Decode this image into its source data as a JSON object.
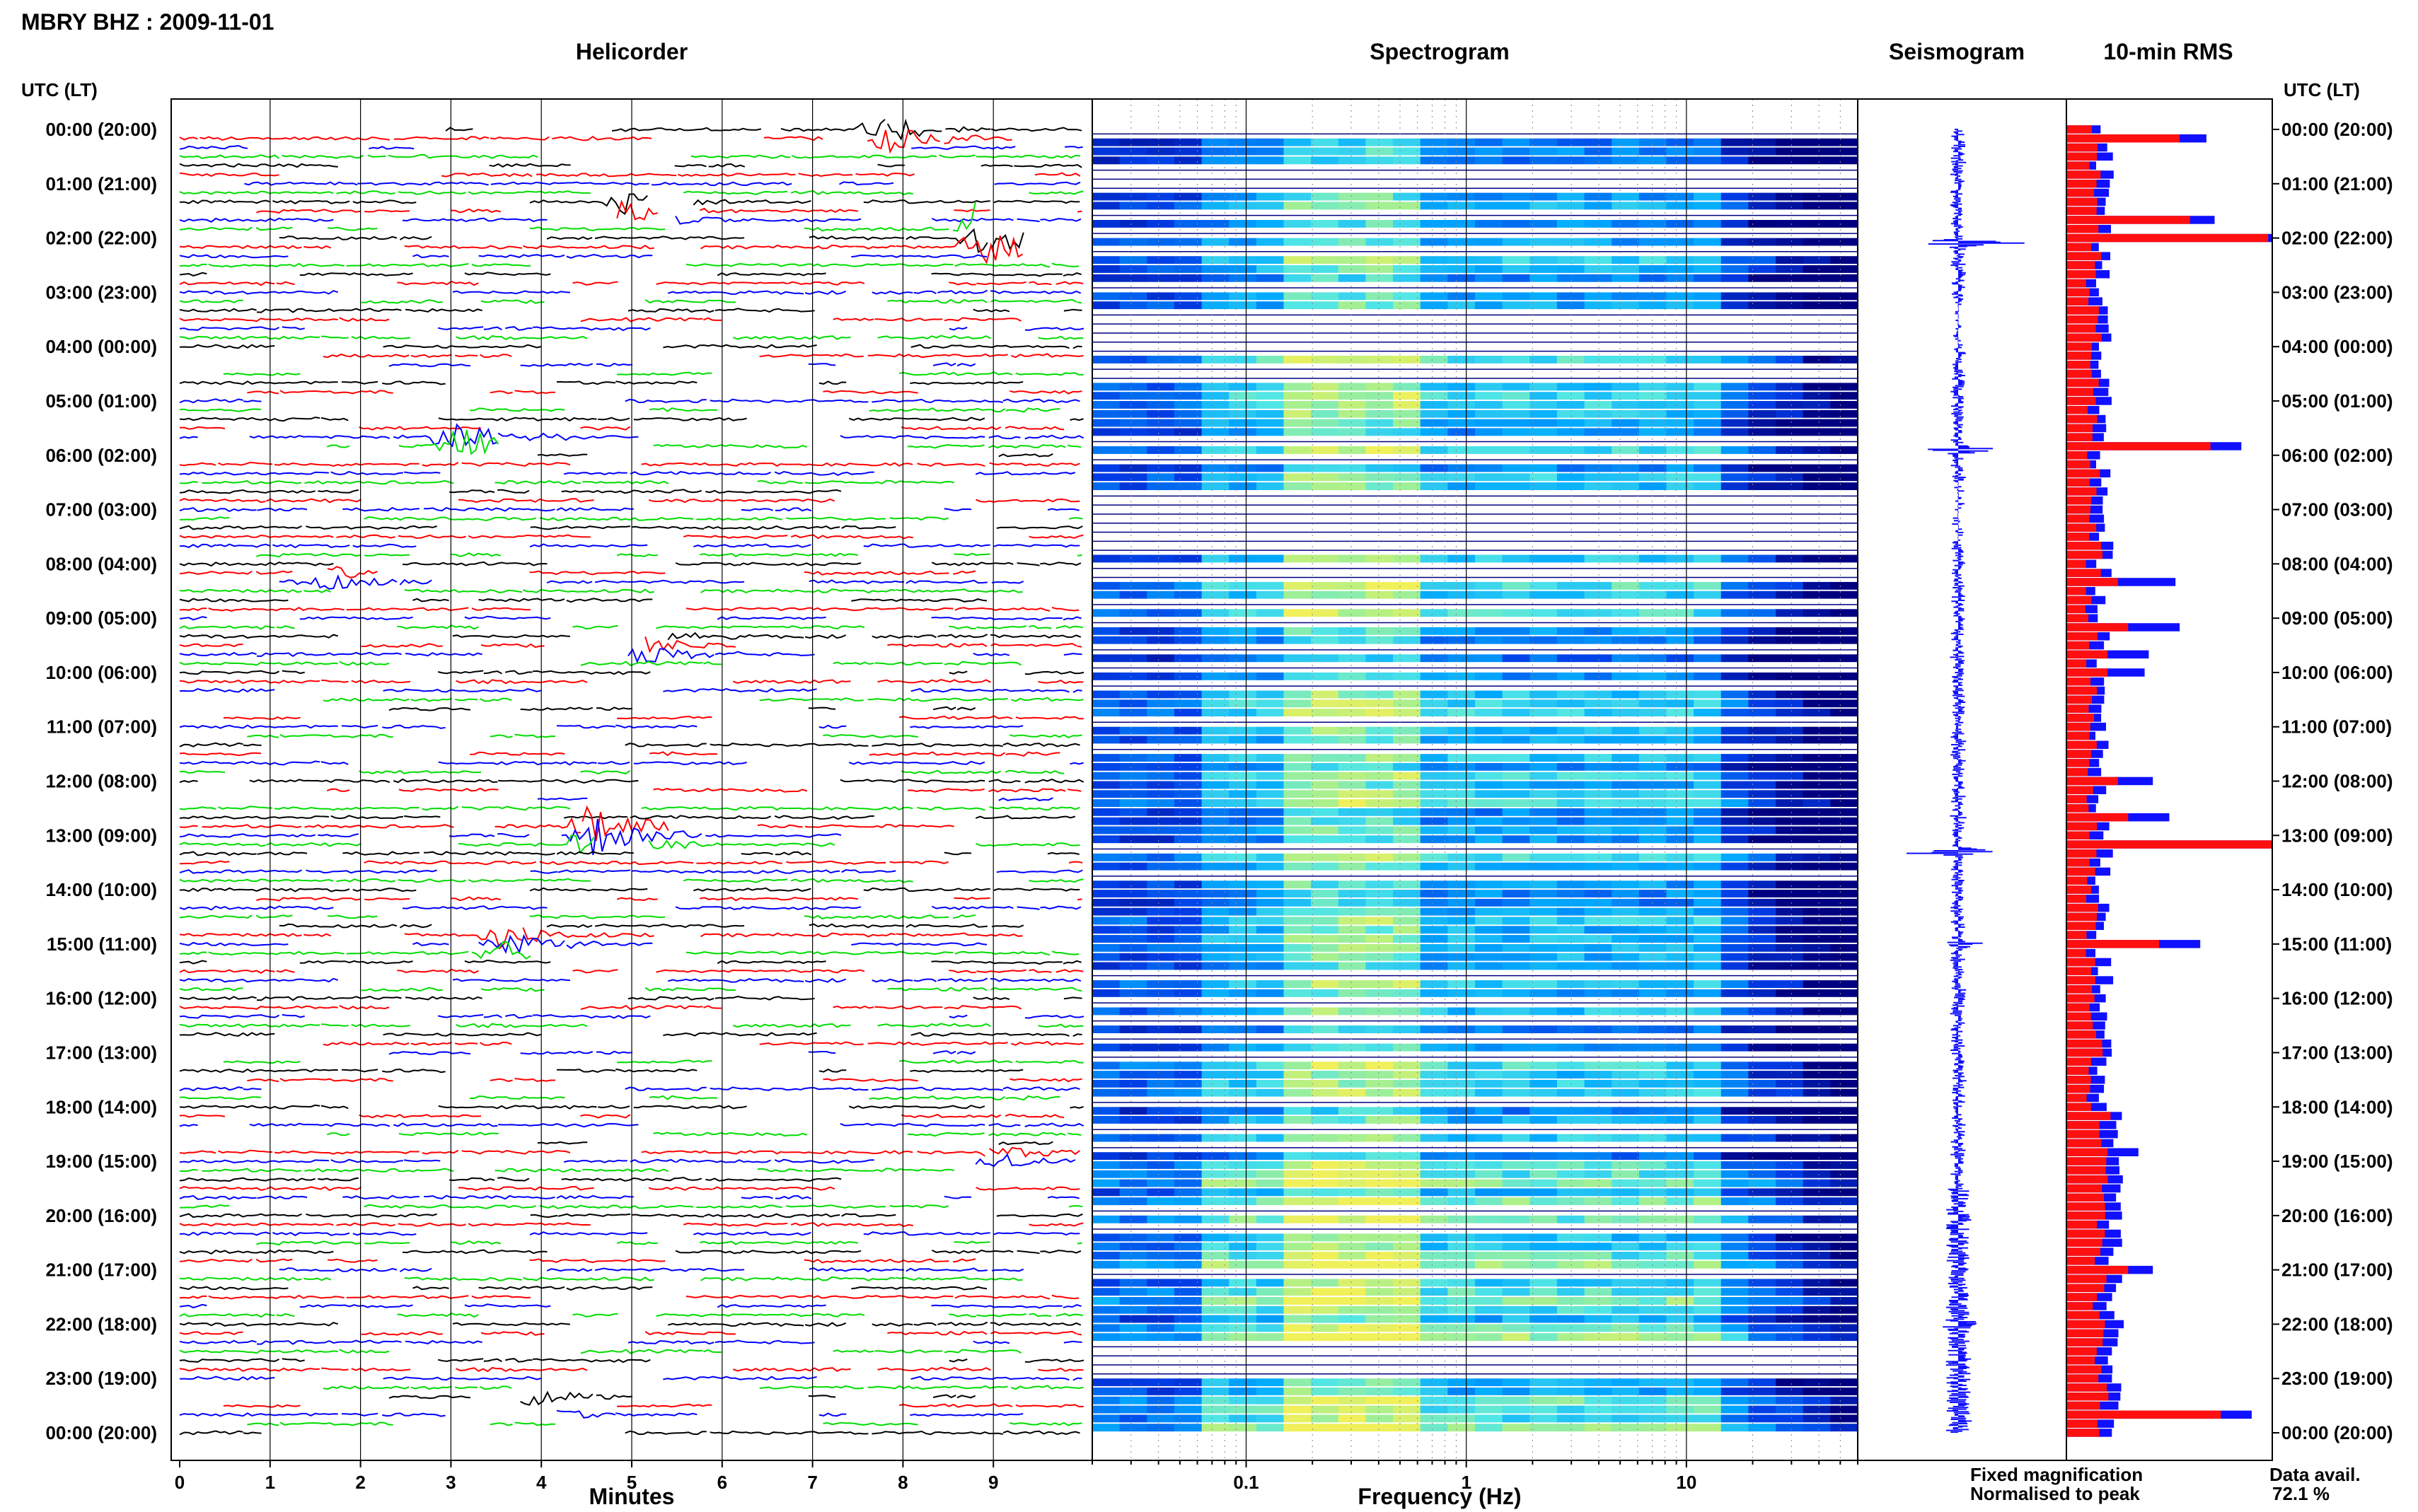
{
  "header": {
    "title": "MBRY BHZ : 2009-11-01"
  },
  "panels": {
    "helicorder": "Helicorder",
    "spectrogram": "Spectrogram",
    "seismogram": "Seismogram",
    "rms": "10-min RMS"
  },
  "axis": {
    "utc_label_left": "UTC (LT)",
    "utc_label_right": "UTC (LT)",
    "minutes_label": "Minutes",
    "frequency_label": "Frequency (Hz)"
  },
  "legend": {
    "fixed": "Fixed magnification",
    "normalised": "Normalised to peak",
    "fixed_color": "#1010ff",
    "normalised_color": "#ff1010"
  },
  "availability": {
    "label": "Data avail.",
    "value": "72.1 %"
  },
  "colors": {
    "trace_cycle": [
      "#000000",
      "#ff0000",
      "#0000ff",
      "#00dd00"
    ],
    "spectrogram_low": "#000080",
    "spectrogram_high": "#f0f060"
  },
  "chart_data": [
    {
      "type": "line",
      "title": "Helicorder",
      "xlabel": "Minutes",
      "x_ticks": [
        "0",
        "1",
        "2",
        "3",
        "4",
        "5",
        "6",
        "7",
        "8",
        "9"
      ],
      "xlim": [
        0,
        10
      ],
      "y_ticks": [
        "00:00 (20:00)",
        "01:00 (21:00)",
        "02:00 (22:00)",
        "03:00 (23:00)",
        "04:00 (00:00)",
        "05:00 (01:00)",
        "06:00 (02:00)",
        "07:00 (03:00)",
        "08:00 (04:00)",
        "09:00 (05:00)",
        "10:00 (06:00)",
        "11:00 (07:00)",
        "12:00 (08:00)",
        "13:00 (09:00)",
        "14:00 (10:00)",
        "15:00 (11:00)",
        "16:00 (12:00)",
        "17:00 (13:00)",
        "18:00 (14:00)",
        "19:00 (15:00)",
        "20:00 (16:00)",
        "21:00 (17:00)",
        "22:00 (18:00)",
        "23:00 (19:00)",
        "00:00 (20:00)"
      ],
      "lines_per_hour": 6,
      "events": [
        {
          "hour": 0.0,
          "minute": 7.7,
          "amp": 0.9
        },
        {
          "hour": 1.5,
          "minute": 4.8,
          "amp": 1.0
        },
        {
          "hour": 2.0,
          "minute": 8.8,
          "amp": 1.4
        },
        {
          "hour": 5.8,
          "minute": 3.0,
          "amp": 1.3
        },
        {
          "hour": 8.2,
          "minute": 1.5,
          "amp": 0.5
        },
        {
          "hour": 9.5,
          "minute": 5.0,
          "amp": 0.6
        },
        {
          "hour": 13.0,
          "minute": 4.5,
          "amp": 1.4
        },
        {
          "hour": 15.0,
          "minute": 3.5,
          "amp": 0.8
        },
        {
          "hour": 19.0,
          "minute": 9.0,
          "amp": 0.4
        },
        {
          "hour": 23.5,
          "minute": 3.5,
          "amp": 1.0
        }
      ]
    },
    {
      "type": "heatmap",
      "title": "Spectrogram",
      "xlabel": "Frequency (Hz)",
      "x_scale": "log",
      "x_ticks": [
        "0.1",
        "1",
        "10"
      ],
      "xlim": [
        0.02,
        60
      ]
    },
    {
      "type": "line",
      "title": "Seismogram",
      "peaks": [
        {
          "hour": 2.1,
          "amp": 0.95
        },
        {
          "hour": 5.9,
          "amp": 0.6
        },
        {
          "hour": 13.3,
          "amp": 1.0
        },
        {
          "hour": 15.0,
          "amp": 0.35
        },
        {
          "hour": 22.0,
          "amp": 0.25
        }
      ]
    },
    {
      "type": "bar",
      "title": "10-min RMS",
      "series": [
        {
          "name": "Fixed magnification",
          "color": "#1010ff"
        },
        {
          "name": "Normalised to peak",
          "color": "#ff1010"
        }
      ],
      "peaks": [
        {
          "hour": 0.1,
          "fixed": 0.68,
          "norm": 0.55
        },
        {
          "hour": 1.6,
          "fixed": 0.72,
          "norm": 0.6
        },
        {
          "hour": 2.0,
          "fixed": 1.0,
          "norm": 0.98
        },
        {
          "hour": 5.9,
          "fixed": 0.85,
          "norm": 0.7
        },
        {
          "hour": 8.3,
          "fixed": 0.53,
          "norm": 0.25
        },
        {
          "hour": 9.1,
          "fixed": 0.55,
          "norm": 0.3
        },
        {
          "hour": 9.6,
          "fixed": 0.4,
          "norm": 0.2
        },
        {
          "hour": 10.0,
          "fixed": 0.38,
          "norm": 0.2
        },
        {
          "hour": 12.0,
          "fixed": 0.42,
          "norm": 0.25
        },
        {
          "hour": 12.7,
          "fixed": 0.5,
          "norm": 0.3
        },
        {
          "hour": 13.2,
          "fixed": 1.0,
          "norm": 1.0
        },
        {
          "hour": 15.0,
          "fixed": 0.65,
          "norm": 0.45
        },
        {
          "hour": 18.9,
          "fixed": 0.35,
          "norm": 0.2
        },
        {
          "hour": 21.0,
          "fixed": 0.42,
          "norm": 0.3
        },
        {
          "hour": 23.6,
          "fixed": 0.9,
          "norm": 0.75
        }
      ]
    }
  ]
}
